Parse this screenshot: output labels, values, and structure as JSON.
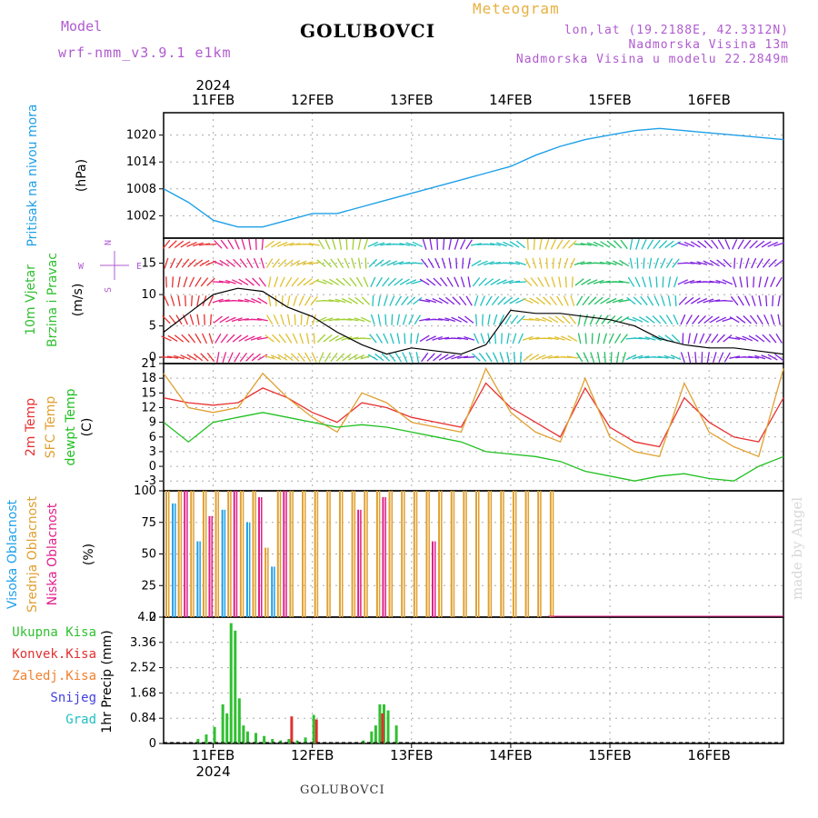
{
  "header": {
    "model_label": "Model",
    "model_name": "wrf-nmm_v3.9.1 e1km",
    "station": "GOLUBOVCI",
    "meteogram": "Meteogram",
    "lonlat": "lon,lat (19.2188E, 42.3312N)",
    "elevation": "Nadmorska Visina 13m",
    "model_elevation": "Nadmorska Visina u modelu 22.2849m"
  },
  "footer": {
    "station": "GOLUBOVCI",
    "credit": "made by Angel"
  },
  "colors": {
    "pressure": "#1ea0e8",
    "temp2m": "#e83030",
    "sfc_temp": "#e0a030",
    "dewpoint": "#20c020",
    "high_cloud": "#1ea0e8",
    "mid_cloud": "#e0a030",
    "low_cloud": "#e0208a",
    "total_precip": "#30c030",
    "conv_precip": "#e03030",
    "frz_precip": "#f08030",
    "snow": "#4040e0",
    "graupel": "#20c0c0",
    "label_purple": "#b05ad0"
  },
  "chart_data": [
    {
      "type": "line",
      "title": "Pritisak na nivou mora",
      "ylabel": "(hPa)",
      "ylim": [
        997,
        1025
      ],
      "yticks": [
        1002,
        1008,
        1014,
        1020
      ],
      "x_axis": {
        "type": "date",
        "start": "2024-02-10T12:00",
        "end": "2024-02-16T18:00",
        "tick_labels": [
          "11FEB",
          "12FEB",
          "13FEB",
          "14FEB",
          "15FEB",
          "16FEB"
        ],
        "year_label": "2024",
        "grid": true
      },
      "series": [
        {
          "name": "Pritisak na nivou mora",
          "x": [
            "2024-02-10T12:00",
            "2024-02-10T18:00",
            "2024-02-11T00:00",
            "2024-02-11T06:00",
            "2024-02-11T12:00",
            "2024-02-11T18:00",
            "2024-02-12T00:00",
            "2024-02-12T06:00",
            "2024-02-12T12:00",
            "2024-02-12T18:00",
            "2024-02-13T00:00",
            "2024-02-13T06:00",
            "2024-02-13T12:00",
            "2024-02-13T18:00",
            "2024-02-14T00:00",
            "2024-02-14T06:00",
            "2024-02-14T12:00",
            "2024-02-14T18:00",
            "2024-02-15T00:00",
            "2024-02-15T06:00",
            "2024-02-15T12:00",
            "2024-02-15T18:00",
            "2024-02-16T00:00",
            "2024-02-16T06:00",
            "2024-02-16T12:00",
            "2024-02-16T18:00"
          ],
          "values": [
            1008,
            1005,
            1001,
            999.5,
            999.5,
            1001,
            1002.5,
            1002.5,
            1004,
            1005.5,
            1007,
            1008.5,
            1010,
            1011.5,
            1013,
            1015.5,
            1017.5,
            1019,
            1020,
            1021,
            1021.5,
            1021,
            1020.5,
            1020,
            1019.5,
            1019
          ]
        }
      ]
    },
    {
      "type": "line",
      "title": "10m Vjetar Brzina i Pravac",
      "ylabel": "(m/s)",
      "ylim": [
        -1,
        19
      ],
      "yticks": [
        0,
        5,
        10,
        15
      ],
      "compass": {
        "n": "N",
        "e": "E",
        "w": "W",
        "s": "S"
      },
      "series": [
        {
          "name": "Brzina",
          "x": [
            "2024-02-10T12:00",
            "2024-02-10T18:00",
            "2024-02-11T00:00",
            "2024-02-11T06:00",
            "2024-02-11T12:00",
            "2024-02-11T18:00",
            "2024-02-12T00:00",
            "2024-02-12T06:00",
            "2024-02-12T12:00",
            "2024-02-12T18:00",
            "2024-02-13T00:00",
            "2024-02-13T06:00",
            "2024-02-13T12:00",
            "2024-02-13T18:00",
            "2024-02-14T00:00",
            "2024-02-14T06:00",
            "2024-02-14T12:00",
            "2024-02-14T18:00",
            "2024-02-15T00:00",
            "2024-02-15T06:00",
            "2024-02-15T12:00",
            "2024-02-15T18:00",
            "2024-02-16T00:00",
            "2024-02-16T06:00",
            "2024-02-16T12:00",
            "2024-02-16T18:00"
          ],
          "values": [
            4,
            7,
            10,
            11,
            10.5,
            8,
            6.5,
            4,
            2,
            0.5,
            1.5,
            1,
            0.5,
            2,
            7.5,
            7,
            7,
            6.5,
            6,
            5,
            3,
            2,
            1.5,
            1.5,
            1,
            0.5
          ]
        }
      ]
    },
    {
      "type": "line",
      "title": "2m Temp / SFC Temp / dewpt Temp",
      "ylabel": "(C)",
      "ylim": [
        -5,
        21
      ],
      "yticks": [
        -3,
        0,
        3,
        6,
        9,
        12,
        15,
        18,
        21
      ],
      "series": [
        {
          "name": "2m Temp",
          "x": [
            "2024-02-10T12:00",
            "2024-02-10T18:00",
            "2024-02-11T00:00",
            "2024-02-11T06:00",
            "2024-02-11T12:00",
            "2024-02-11T18:00",
            "2024-02-12T00:00",
            "2024-02-12T06:00",
            "2024-02-12T12:00",
            "2024-02-12T18:00",
            "2024-02-13T00:00",
            "2024-02-13T06:00",
            "2024-02-13T12:00",
            "2024-02-13T18:00",
            "2024-02-14T00:00",
            "2024-02-14T06:00",
            "2024-02-14T12:00",
            "2024-02-14T18:00",
            "2024-02-15T00:00",
            "2024-02-15T06:00",
            "2024-02-15T12:00",
            "2024-02-15T18:00",
            "2024-02-16T00:00",
            "2024-02-16T06:00",
            "2024-02-16T12:00",
            "2024-02-16T18:00"
          ],
          "values": [
            14,
            13,
            12.5,
            13,
            16,
            14,
            11,
            9,
            13,
            12,
            10,
            9,
            8,
            17,
            12,
            9,
            6,
            16,
            8,
            5,
            4,
            14,
            9,
            6,
            5,
            14
          ]
        },
        {
          "name": "SFC Temp",
          "x": [
            "2024-02-10T12:00",
            "2024-02-10T18:00",
            "2024-02-11T00:00",
            "2024-02-11T06:00",
            "2024-02-11T12:00",
            "2024-02-11T18:00",
            "2024-02-12T00:00",
            "2024-02-12T06:00",
            "2024-02-12T12:00",
            "2024-02-12T18:00",
            "2024-02-13T00:00",
            "2024-02-13T06:00",
            "2024-02-13T12:00",
            "2024-02-13T18:00",
            "2024-02-14T00:00",
            "2024-02-14T06:00",
            "2024-02-14T12:00",
            "2024-02-14T18:00",
            "2024-02-15T00:00",
            "2024-02-15T06:00",
            "2024-02-15T12:00",
            "2024-02-15T18:00",
            "2024-02-16T00:00",
            "2024-02-16T06:00",
            "2024-02-16T12:00",
            "2024-02-16T18:00"
          ],
          "values": [
            19,
            12,
            11,
            12,
            19,
            14,
            10,
            7,
            15,
            13,
            9,
            8,
            7,
            20,
            11,
            7,
            5,
            18,
            6,
            3,
            2,
            17,
            7,
            4,
            2,
            20
          ]
        },
        {
          "name": "dewpt Temp",
          "x": [
            "2024-02-10T12:00",
            "2024-02-10T18:00",
            "2024-02-11T00:00",
            "2024-02-11T06:00",
            "2024-02-11T12:00",
            "2024-02-11T18:00",
            "2024-02-12T00:00",
            "2024-02-12T06:00",
            "2024-02-12T12:00",
            "2024-02-12T18:00",
            "2024-02-13T00:00",
            "2024-02-13T06:00",
            "2024-02-13T12:00",
            "2024-02-13T18:00",
            "2024-02-14T00:00",
            "2024-02-14T06:00",
            "2024-02-14T12:00",
            "2024-02-14T18:00",
            "2024-02-15T00:00",
            "2024-02-15T06:00",
            "2024-02-15T12:00",
            "2024-02-15T18:00",
            "2024-02-16T00:00",
            "2024-02-16T06:00",
            "2024-02-16T12:00",
            "2024-02-16T18:00"
          ],
          "values": [
            9,
            5,
            9,
            10,
            11,
            10,
            9,
            8,
            8.5,
            8,
            7,
            6,
            5,
            3,
            2.5,
            2,
            1,
            -1,
            -2,
            -3,
            -2,
            -1.5,
            -2.5,
            -3,
            0,
            2
          ]
        }
      ]
    },
    {
      "type": "bar",
      "title": "Visoka Oblacnost / Srednja Oblacnost / Niska Oblacnost",
      "ylabel": "(%)",
      "ylim": [
        0,
        100
      ],
      "yticks": [
        0,
        25,
        50,
        75,
        100
      ],
      "series": [
        {
          "name": "Visoka Oblacnost",
          "x": [
            "2024-02-10T14:00",
            "2024-02-10T20:00",
            "2024-02-11T02:00",
            "2024-02-11T08:00",
            "2024-02-11T14:00"
          ],
          "values": [
            90,
            60,
            85,
            75,
            40
          ]
        },
        {
          "name": "Srednja Oblacnost",
          "x": [
            "2024-02-10T12:00",
            "2024-02-10T15:00",
            "2024-02-10T18:00",
            "2024-02-10T21:00",
            "2024-02-11T00:00",
            "2024-02-11T03:00",
            "2024-02-11T06:00",
            "2024-02-11T09:00",
            "2024-02-11T12:00",
            "2024-02-11T15:00",
            "2024-02-11T18:00",
            "2024-02-11T21:00",
            "2024-02-12T00:00",
            "2024-02-12T03:00",
            "2024-02-12T06:00",
            "2024-02-12T09:00",
            "2024-02-12T12:00",
            "2024-02-12T15:00",
            "2024-02-12T18:00",
            "2024-02-12T21:00",
            "2024-02-13T00:00",
            "2024-02-13T03:00",
            "2024-02-13T06:00",
            "2024-02-13T09:00",
            "2024-02-13T12:00",
            "2024-02-13T15:00",
            "2024-02-13T18:00",
            "2024-02-13T21:00",
            "2024-02-14T00:00",
            "2024-02-14T03:00",
            "2024-02-14T06:00",
            "2024-02-14T09:00"
          ],
          "values": [
            100,
            100,
            100,
            100,
            100,
            100,
            100,
            100,
            55,
            100,
            100,
            100,
            100,
            100,
            100,
            100,
            100,
            100,
            100,
            100,
            100,
            100,
            100,
            100,
            100,
            100,
            100,
            100,
            100,
            100,
            100,
            100
          ]
        },
        {
          "name": "Niska Oblacnost",
          "x": [
            "2024-02-10T16:00",
            "2024-02-10T22:00",
            "2024-02-11T04:00",
            "2024-02-11T10:00",
            "2024-02-11T16:00",
            "2024-02-12T10:00",
            "2024-02-12T16:00",
            "2024-02-13T04:00"
          ],
          "values": [
            100,
            80,
            100,
            95,
            100,
            85,
            95,
            60
          ]
        }
      ]
    },
    {
      "type": "bar",
      "title": "1hr Precip",
      "ylabel": "1hr Precip (mm)",
      "ylim": [
        0,
        4.2
      ],
      "yticks": [
        0,
        0.84,
        1.68,
        2.52,
        3.36,
        4.2
      ],
      "series": [
        {
          "name": "Ukupna Kisa",
          "x": [
            "2024-02-10T20:00",
            "2024-02-10T22:00",
            "2024-02-11T00:00",
            "2024-02-11T02:00",
            "2024-02-11T03:00",
            "2024-02-11T04:00",
            "2024-02-11T05:00",
            "2024-02-11T06:00",
            "2024-02-11T07:00",
            "2024-02-11T08:00",
            "2024-02-11T10:00",
            "2024-02-11T12:00",
            "2024-02-11T14:00",
            "2024-02-11T16:00",
            "2024-02-11T18:00",
            "2024-02-11T20:00",
            "2024-02-11T22:00",
            "2024-02-12T00:00",
            "2024-02-12T12:00",
            "2024-02-12T14:00",
            "2024-02-12T15:00",
            "2024-02-12T16:00",
            "2024-02-12T17:00",
            "2024-02-12T18:00",
            "2024-02-12T20:00"
          ],
          "values": [
            0.15,
            0.3,
            0.55,
            1.3,
            1.0,
            4.0,
            3.75,
            1.5,
            0.6,
            0.4,
            0.35,
            0.25,
            0.15,
            0.1,
            0.15,
            0.1,
            0.2,
            0.95,
            0.1,
            0.4,
            0.6,
            1.3,
            1.3,
            1.1,
            0.6
          ]
        },
        {
          "name": "Konvek.Kisa",
          "x": [
            "2024-02-11T18:00",
            "2024-02-12T00:00",
            "2024-02-12T16:00"
          ],
          "values": [
            0.9,
            0.8,
            1.0
          ]
        }
      ]
    }
  ],
  "precip_legend": [
    "Ukupna Kisa",
    "Konvek.Kisa",
    "Zaledj.Kisa",
    "Snijeg",
    "Grad"
  ],
  "cloud_legend": [
    "Visoka Oblacnost",
    "Srednja Oblacnost",
    "Niska Oblacnost"
  ],
  "temp_legend": [
    "2m Temp",
    "SFC Temp",
    "dewpt Temp"
  ],
  "wind_legend": [
    "10m Vjetar",
    "Brzina i Pravac"
  ]
}
